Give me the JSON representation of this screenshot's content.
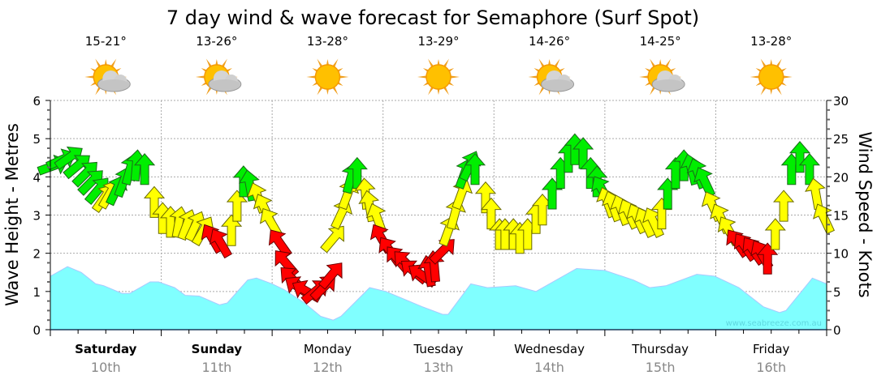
{
  "chart_data": {
    "type": "line",
    "title": "7 day wind & wave forecast for Semaphore  (Surf Spot)",
    "ylabel_left": "Wave Height - Metres",
    "ylabel_right": "Wind Speed - Knots",
    "ylim_left": [
      0,
      6
    ],
    "ylim_right": [
      0,
      30
    ],
    "yticks_left": [
      "0",
      "1",
      "2",
      "3",
      "4",
      "5",
      "6"
    ],
    "yticks_right": [
      "0",
      "5",
      "10",
      "15",
      "20",
      "25",
      "30"
    ],
    "x_unit": "hours from Saturday 00:00",
    "xlim": [
      0,
      168
    ],
    "grid": true,
    "watermark": "www.seabreeze.com.au",
    "days": [
      {
        "day": "Saturday",
        "date": "10th",
        "temp": "15-21°",
        "icon": "partly-cloudy",
        "bold": true
      },
      {
        "day": "Sunday",
        "date": "11th",
        "temp": "13-26°",
        "icon": "partly-cloudy",
        "bold": true
      },
      {
        "day": "Monday",
        "date": "12th",
        "temp": "13-28°",
        "icon": "sunny",
        "bold": false
      },
      {
        "day": "Tuesday",
        "date": "13th",
        "temp": "13-29°",
        "icon": "sunny",
        "bold": false
      },
      {
        "day": "Wednesday",
        "date": "14th",
        "temp": "14-26°",
        "icon": "partly-cloudy",
        "bold": false
      },
      {
        "day": "Thursday",
        "date": "15th",
        "temp": "14-25°",
        "icon": "partly-cloudy",
        "bold": false
      },
      {
        "day": "Friday",
        "date": "16th",
        "temp": "13-28°",
        "icon": "sunny",
        "bold": false
      }
    ],
    "wave_series": {
      "name": "Wave Height (m)",
      "color": "#80ffff",
      "points": [
        [
          0,
          1.4
        ],
        [
          3.7,
          1.65
        ],
        [
          6.7,
          1.5
        ],
        [
          9.8,
          1.2
        ],
        [
          11.6,
          1.15
        ],
        [
          15.5,
          0.95
        ],
        [
          17.2,
          0.95
        ],
        [
          21.6,
          1.25
        ],
        [
          23.4,
          1.25
        ],
        [
          26.9,
          1.1
        ],
        [
          29.2,
          0.9
        ],
        [
          32.2,
          0.88
        ],
        [
          36.6,
          0.65
        ],
        [
          38.3,
          0.7
        ],
        [
          42.7,
          1.3
        ],
        [
          44.6,
          1.35
        ],
        [
          48,
          1.2
        ],
        [
          50.6,
          1.05
        ],
        [
          55,
          0.7
        ],
        [
          58.5,
          0.35
        ],
        [
          61.2,
          0.25
        ],
        [
          62.9,
          0.35
        ],
        [
          69.1,
          1.1
        ],
        [
          72.6,
          1.0
        ],
        [
          80.5,
          0.6
        ],
        [
          84.9,
          0.4
        ],
        [
          86.1,
          0.4
        ],
        [
          91,
          1.2
        ],
        [
          94.6,
          1.1
        ],
        [
          100.7,
          1.15
        ],
        [
          105.1,
          1.0
        ],
        [
          113.9,
          1.6
        ],
        [
          120,
          1.55
        ],
        [
          126.2,
          1.3
        ],
        [
          129.7,
          1.1
        ],
        [
          133.2,
          1.15
        ],
        [
          139.9,
          1.45
        ],
        [
          143.8,
          1.4
        ],
        [
          149,
          1.1
        ],
        [
          154.3,
          0.6
        ],
        [
          157.8,
          0.45
        ],
        [
          159.2,
          0.5
        ],
        [
          164.9,
          1.35
        ],
        [
          168,
          1.2
        ]
      ]
    },
    "wind_colors": {
      "g": "#00ee00",
      "y": "#ffff00",
      "r": "#ff0000"
    },
    "wind_series": {
      "name": "Wind Speed (knots) [hour, knots, arrow rotation deg, colour]",
      "points": [
        [
          0.5,
          21.4,
          70,
          "g"
        ],
        [
          2.3,
          22.2,
          65,
          "g"
        ],
        [
          4.0,
          22.5,
          55,
          "g"
        ],
        [
          5.8,
          21.4,
          50,
          "g"
        ],
        [
          7.6,
          20.4,
          45,
          "g"
        ],
        [
          8.8,
          19.3,
          45,
          "g"
        ],
        [
          10.2,
          18.2,
          40,
          "g"
        ],
        [
          11.6,
          17.2,
          35,
          "y"
        ],
        [
          12.8,
          17.7,
          30,
          "y"
        ],
        [
          14.2,
          18.2,
          25,
          "g"
        ],
        [
          15.8,
          19.3,
          20,
          "g"
        ],
        [
          17.2,
          20.9,
          15,
          "g"
        ],
        [
          18.6,
          21.4,
          5,
          "g"
        ],
        [
          20.4,
          20.9,
          0,
          "g"
        ],
        [
          22.5,
          16.6,
          0,
          "y"
        ],
        [
          24.3,
          14.5,
          0,
          "y"
        ],
        [
          26.0,
          14.0,
          0,
          "y"
        ],
        [
          27.8,
          14.0,
          10,
          "y"
        ],
        [
          29.5,
          13.7,
          20,
          "y"
        ],
        [
          31.3,
          13.5,
          25,
          "y"
        ],
        [
          33.0,
          12.9,
          30,
          "y"
        ],
        [
          35.1,
          11.9,
          -30,
          "r"
        ],
        [
          36.9,
          11.3,
          -30,
          "r"
        ],
        [
          39.2,
          12.9,
          0,
          "y"
        ],
        [
          40.4,
          16.1,
          0,
          "y"
        ],
        [
          41.8,
          19.3,
          0,
          "g"
        ],
        [
          43.2,
          18.8,
          -10,
          "g"
        ],
        [
          45.0,
          17.2,
          -20,
          "y"
        ],
        [
          46.4,
          15.8,
          -25,
          "y"
        ],
        [
          47.8,
          14.0,
          -30,
          "y"
        ],
        [
          49.7,
          11.3,
          -35,
          "r"
        ],
        [
          51.0,
          8.7,
          -40,
          "r"
        ],
        [
          52.4,
          6.6,
          -45,
          "r"
        ],
        [
          53.8,
          5.5,
          -55,
          "r"
        ],
        [
          55.5,
          5.0,
          -60,
          "r"
        ],
        [
          57.3,
          5.0,
          50,
          "r"
        ],
        [
          59.1,
          5.5,
          45,
          "r"
        ],
        [
          60.8,
          7.1,
          40,
          "r"
        ],
        [
          61.2,
          11.9,
          40,
          "y"
        ],
        [
          62.9,
          15.1,
          25,
          "y"
        ],
        [
          64.3,
          17.7,
          20,
          "y"
        ],
        [
          65.0,
          19.8,
          15,
          "g"
        ],
        [
          66.4,
          20.4,
          0,
          "g"
        ],
        [
          68.2,
          17.7,
          -5,
          "y"
        ],
        [
          69.1,
          16.1,
          -10,
          "y"
        ],
        [
          70.8,
          14.5,
          -20,
          "y"
        ],
        [
          71.7,
          11.9,
          -30,
          "r"
        ],
        [
          73.5,
          10.3,
          -35,
          "r"
        ],
        [
          75.2,
          9.2,
          -40,
          "r"
        ],
        [
          77.0,
          8.7,
          -45,
          "r"
        ],
        [
          78.7,
          7.6,
          -50,
          "r"
        ],
        [
          80.5,
          7.1,
          -55,
          "r"
        ],
        [
          81.9,
          7.6,
          -10,
          "r"
        ],
        [
          83.1,
          8.2,
          -5,
          "r"
        ],
        [
          84.9,
          10.3,
          45,
          "r"
        ],
        [
          86.1,
          12.9,
          20,
          "y"
        ],
        [
          87.5,
          15.1,
          15,
          "y"
        ],
        [
          88.9,
          17.7,
          20,
          "y"
        ],
        [
          89.6,
          20.4,
          20,
          "g"
        ],
        [
          90.7,
          21.4,
          25,
          "g"
        ],
        [
          91.9,
          20.9,
          0,
          "g"
        ],
        [
          94.2,
          17.2,
          0,
          "y"
        ],
        [
          95.4,
          15.1,
          0,
          "y"
        ],
        [
          97.2,
          12.4,
          0,
          "y"
        ],
        [
          98.4,
          12.4,
          0,
          "y"
        ],
        [
          100.2,
          12.4,
          0,
          "y"
        ],
        [
          101.6,
          11.9,
          0,
          "y"
        ],
        [
          103.3,
          12.4,
          0,
          "y"
        ],
        [
          105.1,
          14.5,
          0,
          "y"
        ],
        [
          106.5,
          15.6,
          0,
          "y"
        ],
        [
          108.6,
          17.7,
          0,
          "g"
        ],
        [
          110.4,
          20.4,
          0,
          "g"
        ],
        [
          112.1,
          22.5,
          0,
          "g"
        ],
        [
          113.5,
          23.5,
          0,
          "g"
        ],
        [
          115.3,
          23.0,
          0,
          "g"
        ],
        [
          116.9,
          20.4,
          0,
          "g"
        ],
        [
          118.3,
          19.3,
          0,
          "g"
        ],
        [
          119.5,
          18.2,
          -30,
          "g"
        ],
        [
          120.6,
          16.6,
          -20,
          "y"
        ],
        [
          121.8,
          16.1,
          -20,
          "y"
        ],
        [
          123.6,
          15.6,
          -20,
          "y"
        ],
        [
          125.3,
          15.1,
          -25,
          "y"
        ],
        [
          127.1,
          14.5,
          -25,
          "y"
        ],
        [
          128.8,
          14.0,
          -25,
          "y"
        ],
        [
          130.6,
          14.0,
          -25,
          "y"
        ],
        [
          132.3,
          15.1,
          0,
          "y"
        ],
        [
          133.6,
          17.7,
          0,
          "g"
        ],
        [
          135.3,
          20.4,
          0,
          "g"
        ],
        [
          137.1,
          21.4,
          0,
          "g"
        ],
        [
          138.8,
          20.9,
          -15,
          "g"
        ],
        [
          140.2,
          20.4,
          -20,
          "g"
        ],
        [
          141.7,
          19.3,
          -25,
          "g"
        ],
        [
          143.4,
          16.1,
          -25,
          "y"
        ],
        [
          145.2,
          14.5,
          -25,
          "y"
        ],
        [
          146.9,
          12.9,
          -30,
          "y"
        ],
        [
          148.7,
          11.3,
          -35,
          "r"
        ],
        [
          150.4,
          10.8,
          -35,
          "r"
        ],
        [
          152.2,
          10.3,
          -35,
          "r"
        ],
        [
          154.0,
          9.8,
          -30,
          "r"
        ],
        [
          155.2,
          9.2,
          0,
          "r"
        ],
        [
          156.9,
          12.4,
          0,
          "y"
        ],
        [
          158.7,
          16.1,
          0,
          "y"
        ],
        [
          160.4,
          20.9,
          0,
          "g"
        ],
        [
          162.2,
          22.5,
          0,
          "g"
        ],
        [
          164.3,
          20.9,
          0,
          "g"
        ],
        [
          165.7,
          17.7,
          -10,
          "y"
        ],
        [
          167.5,
          14.5,
          -25,
          "y"
        ]
      ]
    }
  }
}
